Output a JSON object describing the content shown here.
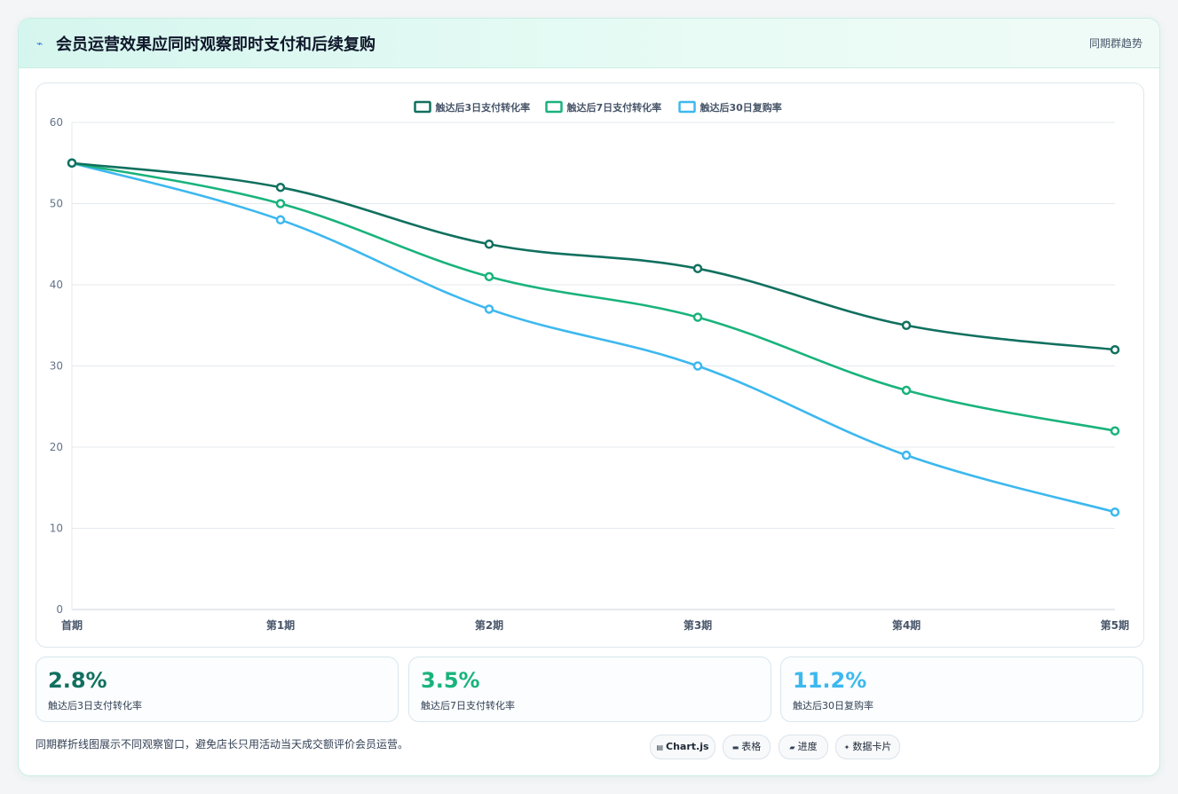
{
  "header": {
    "icon": "bolt-icon",
    "title": "会员运营效果应同时观察即时支付和后续复购",
    "right_label": "同期群趋势"
  },
  "chart_data": {
    "type": "line",
    "categories": [
      "首期",
      "第1期",
      "第2期",
      "第3期",
      "第4期",
      "第5期"
    ],
    "series": [
      {
        "name": "触达后3日支付转化率",
        "values": [
          55,
          52,
          45,
          42,
          35,
          32
        ],
        "color": "#11705f"
      },
      {
        "name": "触达后7日支付转化率",
        "values": [
          55,
          50,
          41,
          36,
          27,
          22
        ],
        "color": "#19b37c"
      },
      {
        "name": "触达后30日复购率",
        "values": [
          55,
          48,
          37,
          30,
          19,
          12
        ],
        "color": "#3db8ef"
      }
    ],
    "yticks": [
      0,
      10,
      20,
      30,
      40,
      50,
      60
    ],
    "ylim": [
      0,
      60
    ],
    "grid": true,
    "legend": "top-center",
    "title": "",
    "xlabel": "",
    "ylabel": ""
  },
  "stats": [
    {
      "value": "2.8%",
      "label": "触达后3日支付转化率",
      "color": "#11705f"
    },
    {
      "value": "3.5%",
      "label": "触达后7日支付转化率",
      "color": "#19b37c"
    },
    {
      "value": "11.2%",
      "label": "触达后30日复购率",
      "color": "#3db8ef"
    }
  ],
  "footer": {
    "note": "同期群折线图展示不同观察窗口，避免店长只用活动当天成交额评价会员运营。",
    "pills": [
      {
        "icon": "chart-icon",
        "label": "Chart.js"
      },
      {
        "icon": "table-icon",
        "label": "表格"
      },
      {
        "icon": "progress-icon",
        "label": "进度"
      },
      {
        "icon": "sparkle-icon",
        "label": "数据卡片"
      }
    ]
  }
}
